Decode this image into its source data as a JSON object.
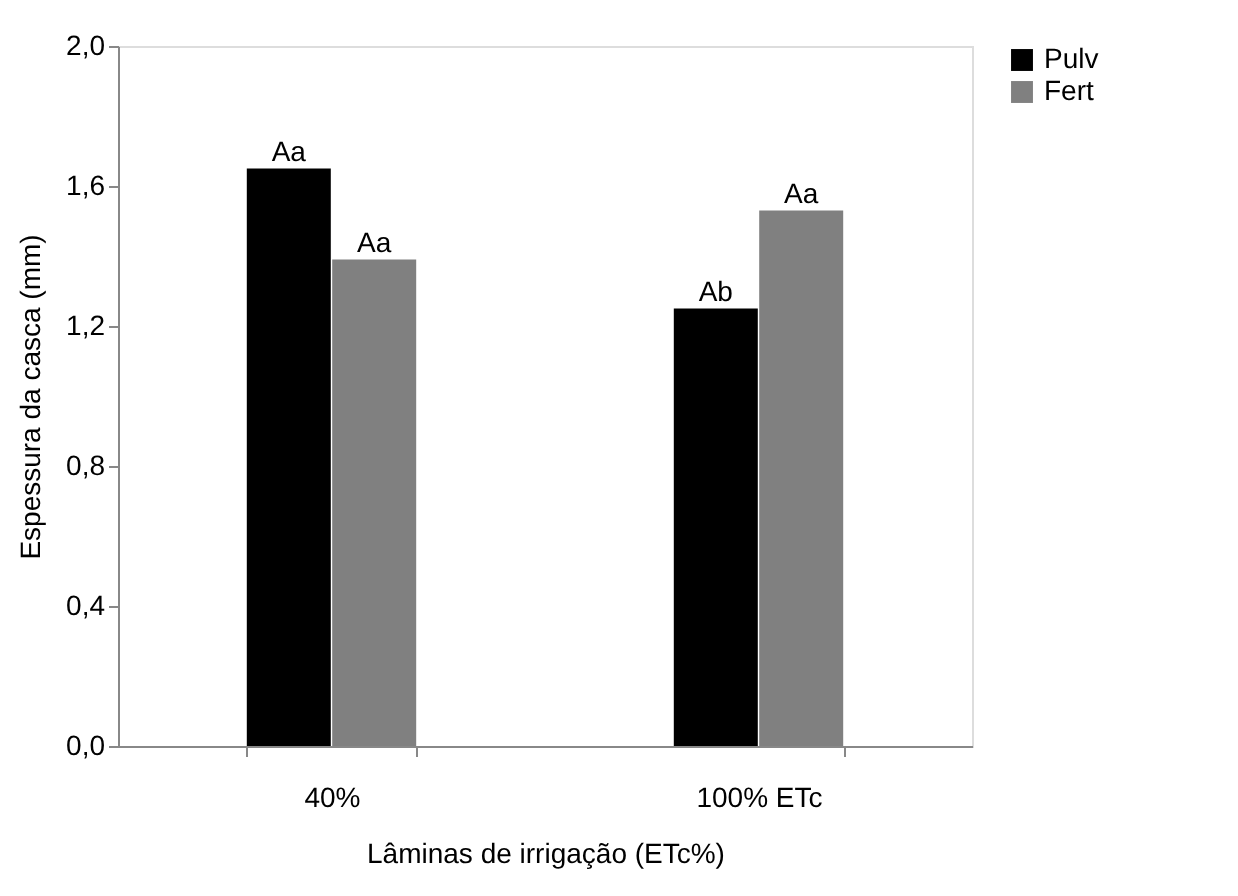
{
  "chart_data": {
    "type": "bar",
    "xlabel": "Lâminas de irrigação (ETc%)",
    "ylabel": "Espessura da casca (mm)",
    "categories": [
      "40%",
      "100% ETc"
    ],
    "series": [
      {
        "name": "Pulv",
        "color": "#000000",
        "values": [
          1.65,
          1.25
        ],
        "value_labels": [
          "Aa",
          "Ab"
        ]
      },
      {
        "name": "Fert",
        "color": "#808080",
        "values": [
          1.39,
          1.53
        ],
        "value_labels": [
          "Aa",
          "Aa"
        ]
      }
    ],
    "ylim": [
      0,
      2.0
    ],
    "yticks": [
      {
        "value": 0,
        "label": "0,0"
      },
      {
        "value": 0.4,
        "label": "0,4"
      },
      {
        "value": 0.8,
        "label": "0,8"
      },
      {
        "value": 1.2,
        "label": "1,2"
      },
      {
        "value": 1.6,
        "label": "1,6"
      },
      {
        "value": 2.0,
        "label": "2,0"
      }
    ],
    "grid": false,
    "legend": "right"
  }
}
